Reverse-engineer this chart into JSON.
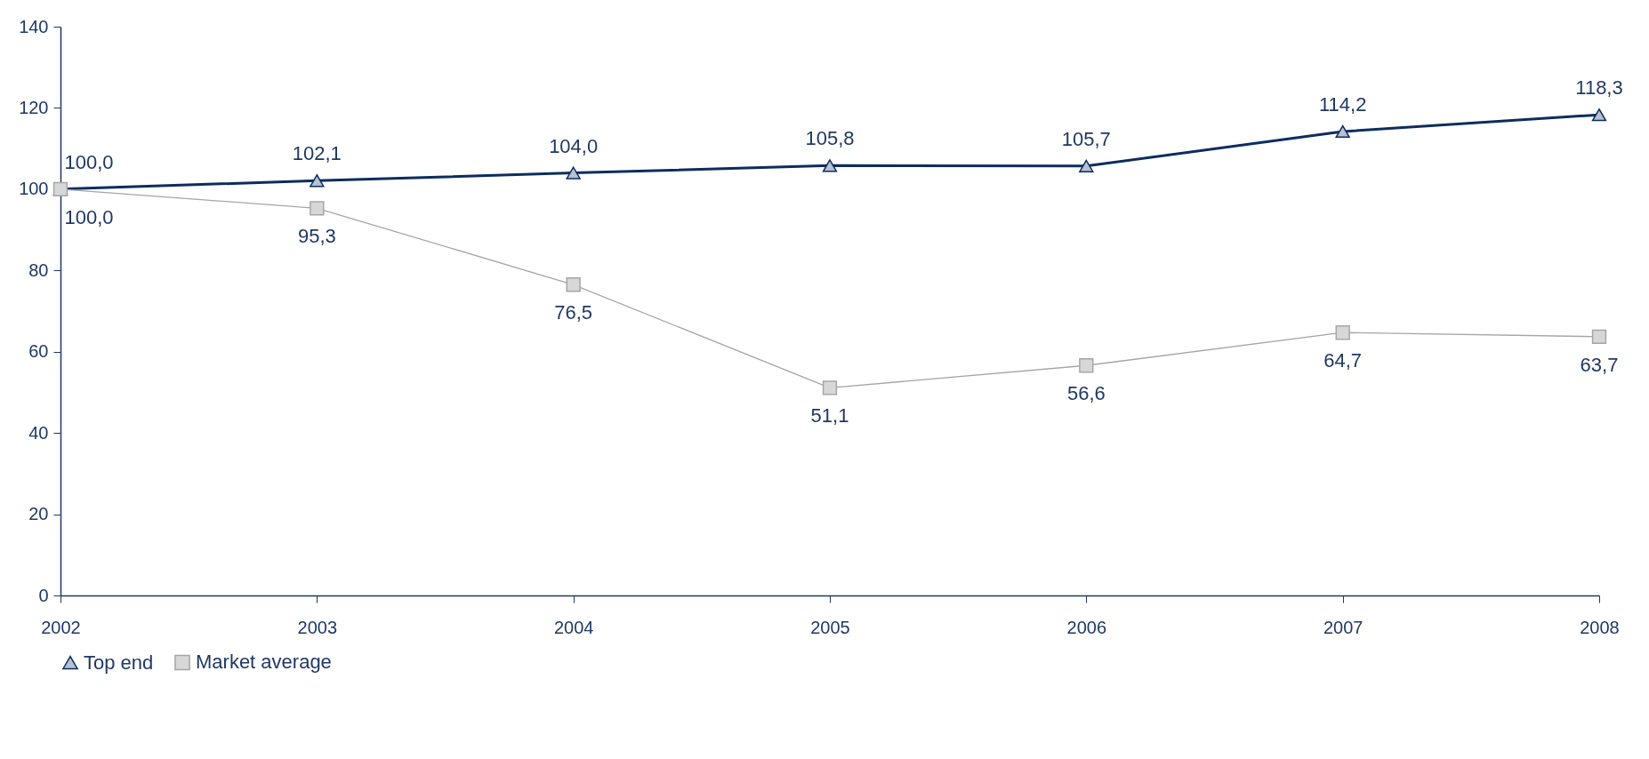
{
  "chart_data": {
    "type": "line",
    "categories": [
      "2002",
      "2003",
      "2004",
      "2005",
      "2006",
      "2007",
      "2008"
    ],
    "series": [
      {
        "name": "Top end",
        "color": "#0d2d5e",
        "marker": "triangle",
        "values": [
          100.0,
          102.1,
          104.0,
          105.8,
          105.7,
          114.2,
          118.3
        ],
        "value_labels": [
          "100,0",
          "102,1",
          "104,0",
          "105,8",
          "105,7",
          "114,2",
          "118,3"
        ]
      },
      {
        "name": "Market average",
        "color": "#a6a6a6",
        "marker": "square",
        "values": [
          100.0,
          95.3,
          76.5,
          51.1,
          56.6,
          64.7,
          63.7
        ],
        "value_labels": [
          "100,0",
          "95,3",
          "76,5",
          "51,1",
          "56,6",
          "64,7",
          "63,7"
        ]
      }
    ],
    "ylim": [
      0,
      140
    ],
    "yticks": [
      0,
      20,
      40,
      60,
      80,
      100,
      120,
      140
    ],
    "grid": false,
    "legend": "bottom"
  }
}
